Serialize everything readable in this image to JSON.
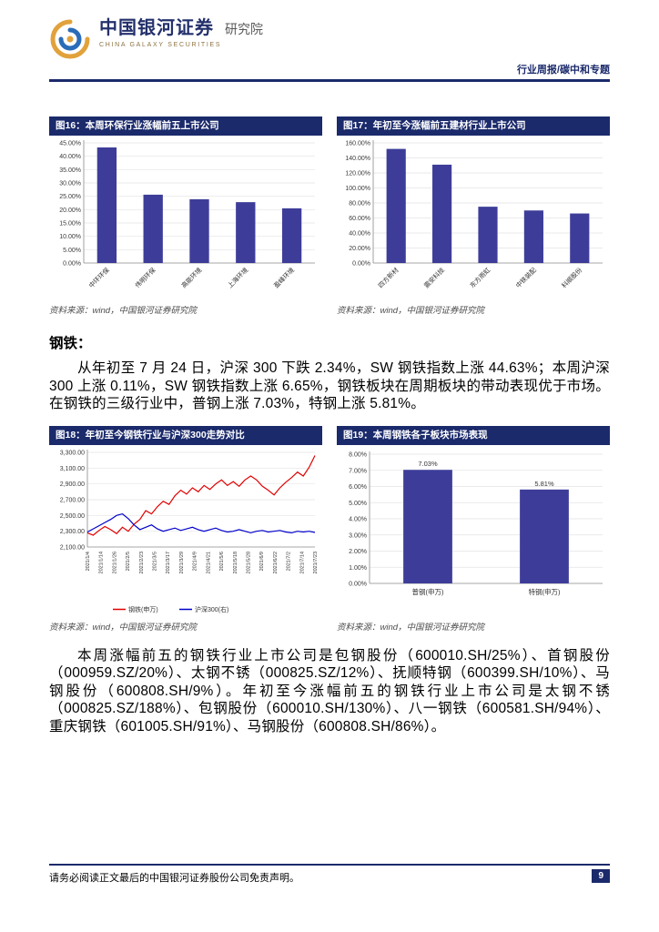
{
  "colors": {
    "navy": "#1b2a6b",
    "bar": "#3d3d99",
    "red_line": "#e00000",
    "blue_line": "#0000cc",
    "gold": "#e1a23c"
  },
  "header": {
    "brand_cn": "中国银河证券",
    "brand_en": "CHINA GALAXY SECURITIES",
    "brand_dept": "研究院",
    "report_tag": "行业周报/碳中和专题"
  },
  "figures": {
    "fig16_title": "图16：本周环保行业涨幅前五上市公司",
    "fig17_title": "图17：年初至今涨幅前五建材行业上市公司",
    "fig18_title": "图18：年初至今钢铁行业与沪深300走势对比",
    "fig19_title": "图19：本周钢铁各子板块市场表现",
    "source_note": "资料来源：wind，中国银河证券研究院"
  },
  "sections": {
    "steel_heading": "钢铁：",
    "steel_para1": "从年初至 7 月 24 日，沪深 300 下跌 2.34%，SW 钢铁指数上涨 44.63%；本周沪深 300 上涨 0.11%，SW 钢铁指数上涨 6.65%，钢铁板块在周期板块的带动表现优于市场。在钢铁的三级行业中，普钢上涨 7.03%，特钢上涨 5.81%。",
    "steel_para2": "本周涨幅前五的钢铁行业上市公司是包钢股份（600010.SH/25%）、首钢股份（000959.SZ/20%）、太钢不锈（000825.SZ/12%）、抚顺特钢（600399.SH/10%）、马钢股份（600808.SH/9%）。年初至今涨幅前五的钢铁行业上市公司是太钢不锈（000825.SZ/188%）、包钢股份（600010.SH/130%）、八一钢铁（600581.SH/94%）、重庆钢铁（601005.SH/91%）、马钢股份（600808.SH/86%）。"
  },
  "footer": {
    "disclaimer": "请务必阅读正文最后的中国银河证券股份公司免责声明。",
    "page_number": "9"
  },
  "chart_data": [
    {
      "type": "bar",
      "title": "本周环保行业涨幅前五上市公司",
      "categories": [
        "中环环保",
        "伟明环保",
        "高能环境",
        "上海环境",
        "盈峰环境"
      ],
      "values": [
        43.3,
        25.6,
        23.9,
        22.8,
        20.5
      ],
      "ylim": [
        0,
        45
      ],
      "ytick_step": 5,
      "unit": "%",
      "grid": true,
      "legend": "none",
      "bar_color": "#3d3d99"
    },
    {
      "type": "bar",
      "title": "年初至今涨幅前五建材行业上市公司",
      "categories": [
        "四方新材",
        "震安科技",
        "东方雨虹",
        "中铁装配",
        "科顺股份"
      ],
      "values": [
        152.0,
        131.0,
        75.0,
        70.0,
        66.0
      ],
      "ylim": [
        0,
        160
      ],
      "ytick_step": 20,
      "unit": "%",
      "grid": true,
      "legend": "none",
      "bar_color": "#3d3d99"
    },
    {
      "type": "line",
      "title": "年初至今钢铁行业与沪深300走势对比",
      "x": [
        "2021/1/4",
        "2021/1/14",
        "2021/1/26",
        "2021/2/5",
        "2021/2/23",
        "2021/3/5",
        "2021/3/17",
        "2021/3/29",
        "2021/4/9",
        "2021/4/21",
        "2021/5/6",
        "2021/5/18",
        "2021/5/28",
        "2021/6/9",
        "2021/6/22",
        "2021/7/2",
        "2021/7/14",
        "2021/7/23"
      ],
      "series": [
        {
          "name": "钢铁(申万)",
          "color": "#e00000",
          "values": [
            2280,
            2250,
            2310,
            2360,
            2320,
            2270,
            2350,
            2300,
            2390,
            2450,
            2560,
            2520,
            2610,
            2680,
            2640,
            2750,
            2820,
            2770,
            2850,
            2800,
            2880,
            2830,
            2900,
            2950,
            2880,
            2930,
            2870,
            2950,
            3000,
            2950,
            2870,
            2820,
            2760,
            2850,
            2920,
            2980,
            3050,
            3000,
            3110,
            3260
          ]
        },
        {
          "name": "沪深300(右)",
          "color": "#0000cc",
          "values": [
            2290,
            2330,
            2370,
            2410,
            2450,
            2500,
            2520,
            2460,
            2380,
            2320,
            2350,
            2380,
            2330,
            2300,
            2320,
            2340,
            2310,
            2330,
            2350,
            2320,
            2300,
            2320,
            2340,
            2310,
            2290,
            2300,
            2320,
            2300,
            2280,
            2300,
            2310,
            2290,
            2300,
            2310,
            2290,
            2280,
            2300,
            2290,
            2300,
            2285
          ]
        }
      ],
      "ylim": [
        2100,
        3300
      ],
      "ytick_step": 200,
      "grid": true,
      "legend": "bottom"
    },
    {
      "type": "bar",
      "title": "本周钢铁各子板块市场表现",
      "categories": [
        "普钢(申万)",
        "特钢(申万)"
      ],
      "values": [
        7.03,
        5.81
      ],
      "value_labels": [
        "7.03%",
        "5.81%"
      ],
      "ylim": [
        0,
        8
      ],
      "ytick_step": 1,
      "unit": "%",
      "grid": true,
      "legend": "none",
      "bar_color": "#3d3d99"
    }
  ]
}
